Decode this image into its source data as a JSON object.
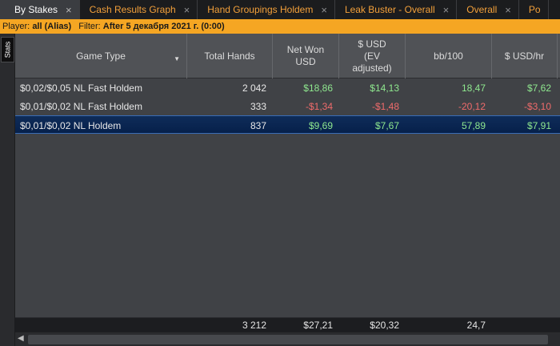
{
  "tabs": [
    {
      "label": "By Stakes",
      "active": true
    },
    {
      "label": "Cash Results Graph",
      "active": false
    },
    {
      "label": "Hand Groupings Holdem",
      "active": false
    },
    {
      "label": "Leak Buster - Overall",
      "active": false
    },
    {
      "label": "Overall",
      "active": false
    },
    {
      "label": "Po",
      "active": false
    }
  ],
  "tab_close_glyph": "×",
  "filter": {
    "player_label": "Player:",
    "player_value": "all (Alias)",
    "filter_label": "Filter:",
    "filter_value": "After 5 декабря 2021 г. (0:00)"
  },
  "side_tab_label": "Stats",
  "columns": [
    {
      "label": "Game Type"
    },
    {
      "label": "Total Hands"
    },
    {
      "label": "Net Won USD"
    },
    {
      "label": "$ USD (EV adjusted)"
    },
    {
      "label": "bb/100"
    },
    {
      "label": "$ USD/hr"
    }
  ],
  "rows": [
    {
      "game": "$0,02/$0,05 NL Fast Holdem",
      "hands": "2 042",
      "net": "$18,86",
      "ev": "$14,13",
      "bb100": "18,47",
      "hr": "$7,62",
      "sign": "pos",
      "selected": false
    },
    {
      "game": "$0,01/$0,02 NL Fast Holdem",
      "hands": "333",
      "net": "-$1,34",
      "ev": "-$1,48",
      "bb100": "-20,12",
      "hr": "-$3,10",
      "sign": "neg",
      "selected": false
    },
    {
      "game": "$0,01/$0,02 NL Holdem",
      "hands": "837",
      "net": "$9,69",
      "ev": "$7,67",
      "bb100": "57,89",
      "hr": "$7,91",
      "sign": "pos",
      "selected": true
    }
  ],
  "totals": {
    "hands": "3 212",
    "net": "$27,21",
    "ev": "$20,32",
    "bb100": "24,7",
    "hr": ""
  },
  "colors": {
    "positive": "#8fe88f",
    "negative": "#ef6b6b",
    "accent": "#f5a623",
    "selected": "#0f2c59"
  }
}
